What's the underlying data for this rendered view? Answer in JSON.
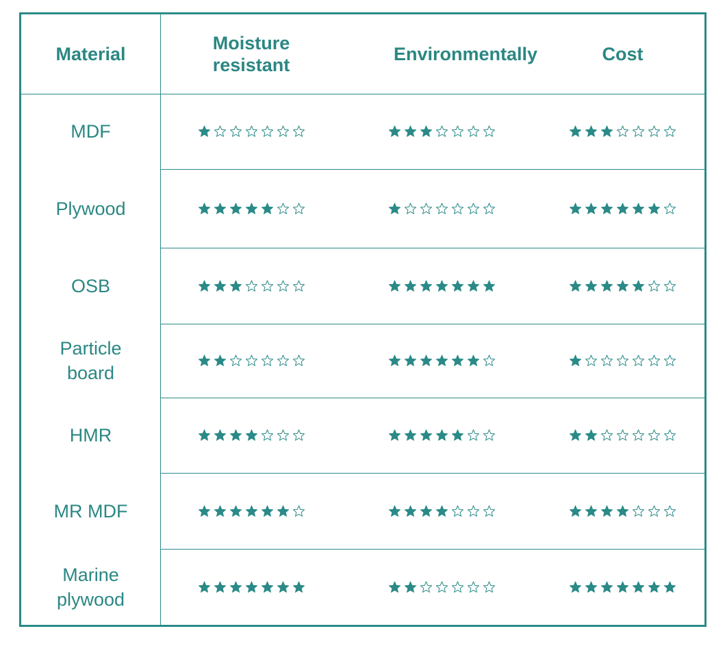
{
  "table": {
    "headers": [
      "Material",
      "Moisture resistant",
      "Environmentally",
      "Cost"
    ],
    "scale_max": 7,
    "rows": [
      [
        "MDF",
        1,
        3,
        3
      ],
      [
        "Plywood",
        5,
        1,
        6
      ],
      [
        "OSB",
        3,
        7,
        5
      ],
      [
        "Particle board",
        2,
        6,
        1
      ],
      [
        "HMR",
        4,
        5,
        2
      ],
      [
        "MR MDF",
        6,
        4,
        4
      ],
      [
        "Marine plywood",
        7,
        2,
        7
      ]
    ]
  }
}
